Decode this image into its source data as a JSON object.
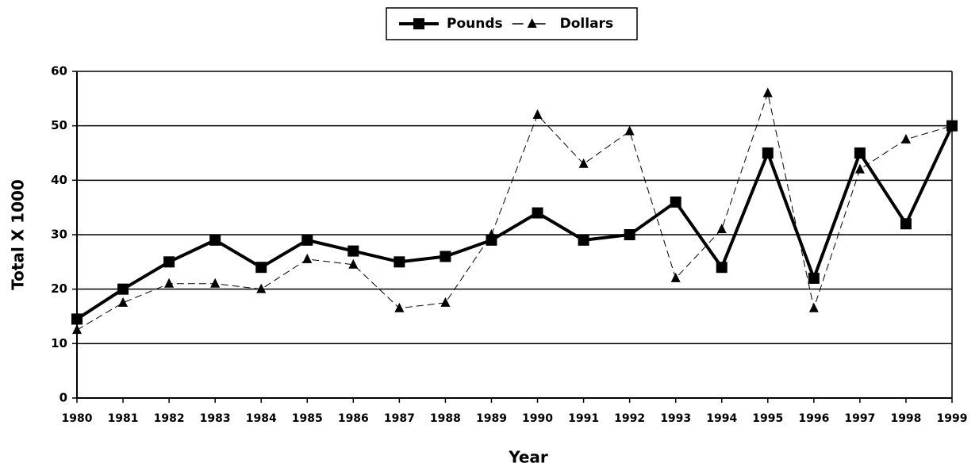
{
  "chart_data": {
    "type": "line",
    "x_label": "Year",
    "y_label": "Total X 1000",
    "x": [
      1980,
      1981,
      1982,
      1983,
      1984,
      1985,
      1986,
      1987,
      1988,
      1989,
      1990,
      1991,
      1992,
      1993,
      1994,
      1995,
      1996,
      1997,
      1998,
      1999
    ],
    "xlim": [
      1980,
      1999
    ],
    "xticks": [
      1980,
      1981,
      1982,
      1983,
      1984,
      1985,
      1986,
      1987,
      1988,
      1989,
      1990,
      1991,
      1992,
      1993,
      1994,
      1995,
      1996,
      1997,
      1998,
      1999
    ],
    "ylim": [
      0,
      60
    ],
    "yticks": [
      0,
      10,
      20,
      30,
      40,
      50,
      60
    ],
    "grid": true,
    "legend": "top",
    "series": [
      {
        "name": "Pounds",
        "color": "#000000",
        "marker": "square",
        "dashed": false,
        "values": [
          14.5,
          20,
          25,
          29,
          24,
          29,
          27,
          25,
          26,
          29,
          34,
          29,
          30,
          36,
          24,
          45,
          22,
          45,
          32,
          50
        ]
      },
      {
        "name": "Dollars",
        "color": "#000000",
        "marker": "triangle",
        "dashed": true,
        "values": [
          12.5,
          17.5,
          21,
          21,
          20,
          25.5,
          24.5,
          16.5,
          17.5,
          30,
          52,
          43,
          49,
          22,
          31,
          56,
          16.5,
          42,
          47.5,
          50
        ]
      }
    ]
  }
}
